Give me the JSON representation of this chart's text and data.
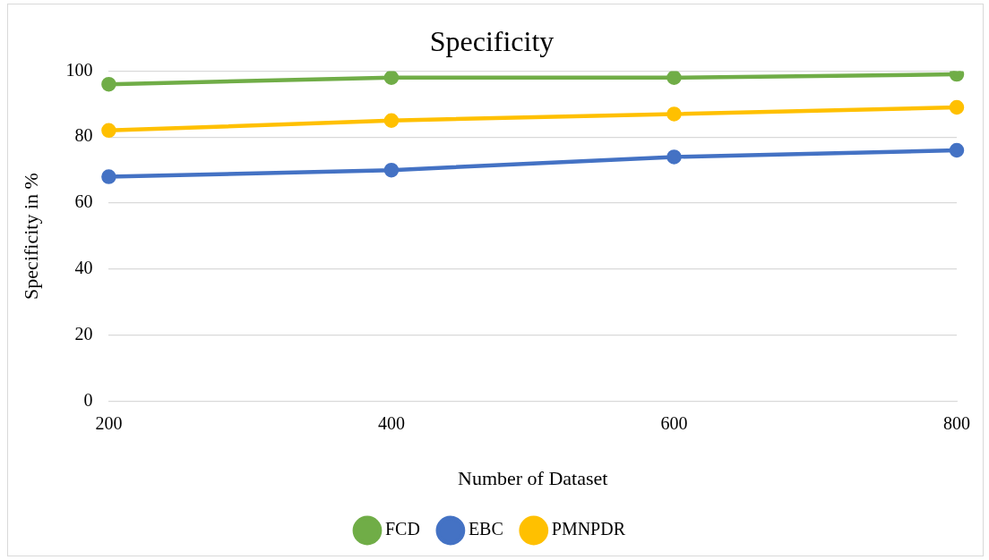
{
  "chart_data": {
    "type": "line",
    "title": "Specificity",
    "xlabel": "Number of Dataset",
    "ylabel": "Specificity in %",
    "categories": [
      "200",
      "400",
      "600",
      "800"
    ],
    "series": [
      {
        "name": "FCD",
        "color": "#70ad47",
        "values": [
          96,
          98,
          98,
          99
        ]
      },
      {
        "name": "EBC",
        "color": "#4472c4",
        "values": [
          68,
          70,
          74,
          76
        ]
      },
      {
        "name": "PMNPDR",
        "color": "#ffc000",
        "values": [
          82,
          85,
          87,
          89
        ]
      }
    ],
    "ylim": [
      0,
      100
    ],
    "yticks": [
      0,
      20,
      40,
      60,
      80,
      100
    ],
    "grid": "y",
    "legend": "bottom",
    "marker": "circle",
    "line_style": "solid"
  }
}
